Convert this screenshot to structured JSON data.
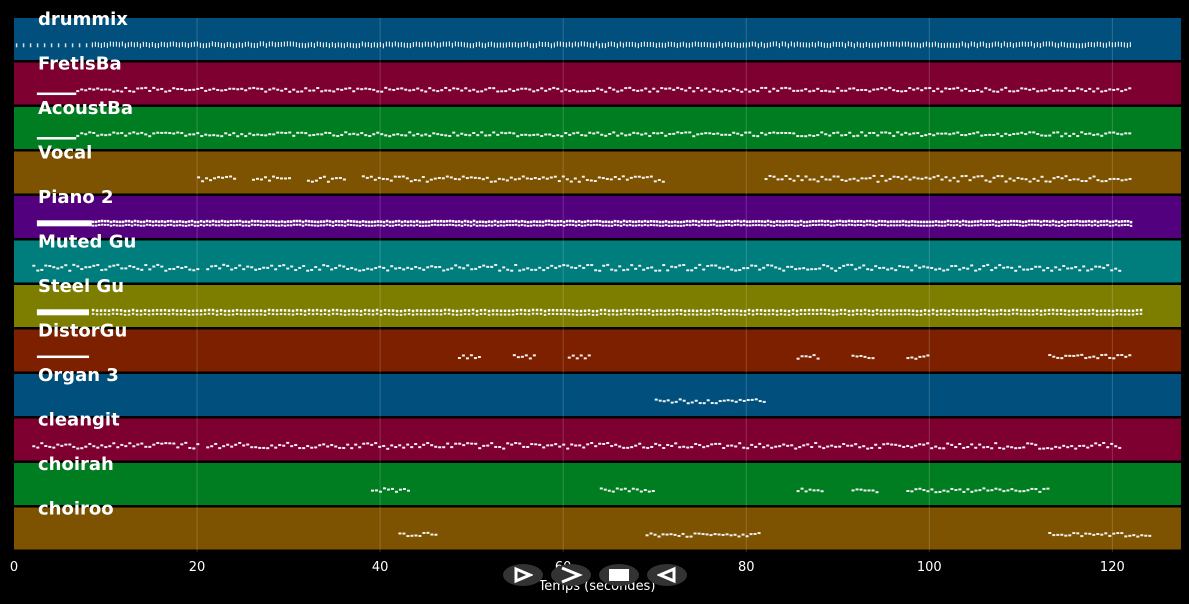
{
  "window": {
    "xlabel": "Temps (secondes)"
  },
  "axis": {
    "xmin": 0,
    "xmax": 127.5,
    "ticks": [
      0,
      20,
      40,
      60,
      80,
      100,
      120
    ]
  },
  "tracks": [
    {
      "name": "drummix",
      "color": "#004f7d",
      "pattern": "drums",
      "segments": [
        [
          0.2,
          8.5,
          "sparse"
        ],
        [
          8.5,
          122,
          "dense"
        ]
      ]
    },
    {
      "name": "FretlsBa",
      "color": "#7d0030",
      "pattern": "bass",
      "segments": [
        [
          2.5,
          6.8,
          "block"
        ],
        [
          6.8,
          122,
          "wave"
        ]
      ]
    },
    {
      "name": "AcoustBa",
      "color": "#007d20",
      "pattern": "bass",
      "segments": [
        [
          2.5,
          6.8,
          "block"
        ],
        [
          6.8,
          122,
          "wave"
        ]
      ]
    },
    {
      "name": "Vocal",
      "color": "#7d5200",
      "pattern": "melody",
      "segments": [
        [
          20,
          24,
          "wave"
        ],
        [
          26,
          30,
          "wave"
        ],
        [
          32,
          36,
          "wave"
        ],
        [
          38,
          71,
          "wave"
        ],
        [
          82,
          122,
          "wave"
        ]
      ]
    },
    {
      "name": "Piano 2",
      "color": "#52007d",
      "pattern": "chords",
      "segments": [
        [
          2.5,
          8.5,
          "block"
        ],
        [
          8.5,
          122,
          "dense"
        ]
      ]
    },
    {
      "name": "Muted Gu",
      "color": "#007d7d",
      "pattern": "melody",
      "segments": [
        [
          2,
          20,
          "wave"
        ],
        [
          21,
          121,
          "wave"
        ]
      ]
    },
    {
      "name": "Steel Gu",
      "color": "#7d7d00",
      "pattern": "chords",
      "segments": [
        [
          2.5,
          8.2,
          "block"
        ],
        [
          8.5,
          123,
          "wave"
        ]
      ]
    },
    {
      "name": "DistorGu",
      "color": "#7d2000",
      "pattern": "sparse",
      "segments": [
        [
          2.5,
          8.2,
          "block"
        ],
        [
          48.5,
          51,
          "wave"
        ],
        [
          54.5,
          57,
          "wave"
        ],
        [
          60.5,
          63,
          "wave"
        ],
        [
          85.5,
          88,
          "wave"
        ],
        [
          91.5,
          94,
          "wave"
        ],
        [
          97.5,
          100,
          "wave"
        ],
        [
          113,
          122,
          "wave"
        ]
      ]
    },
    {
      "name": "Organ 3",
      "color": "#004f7d",
      "pattern": "sparse",
      "segments": [
        [
          70,
          82,
          "wave"
        ]
      ]
    },
    {
      "name": "cleangit",
      "color": "#7d0030",
      "pattern": "melody",
      "segments": [
        [
          2,
          20,
          "wave"
        ],
        [
          21,
          121,
          "wave"
        ]
      ]
    },
    {
      "name": "choirah",
      "color": "#007d20",
      "pattern": "sparse",
      "segments": [
        [
          39,
          43,
          "wave"
        ],
        [
          64,
          70,
          "wave"
        ],
        [
          85.5,
          88.5,
          "wave"
        ],
        [
          91.5,
          94.5,
          "wave"
        ],
        [
          97.5,
          113,
          "wave"
        ]
      ]
    },
    {
      "name": "choiroo",
      "color": "#7d5200",
      "pattern": "sparse",
      "segments": [
        [
          42,
          46,
          "wave"
        ],
        [
          69,
          81.5,
          "wave"
        ],
        [
          113,
          124,
          "wave"
        ]
      ]
    }
  ],
  "controls": [
    {
      "name": "play-button",
      "icon": "play-icon"
    },
    {
      "name": "forward-button",
      "icon": "forward-icon"
    },
    {
      "name": "stop-button",
      "icon": "stop-icon"
    },
    {
      "name": "rewind-button",
      "icon": "rewind-icon"
    }
  ]
}
